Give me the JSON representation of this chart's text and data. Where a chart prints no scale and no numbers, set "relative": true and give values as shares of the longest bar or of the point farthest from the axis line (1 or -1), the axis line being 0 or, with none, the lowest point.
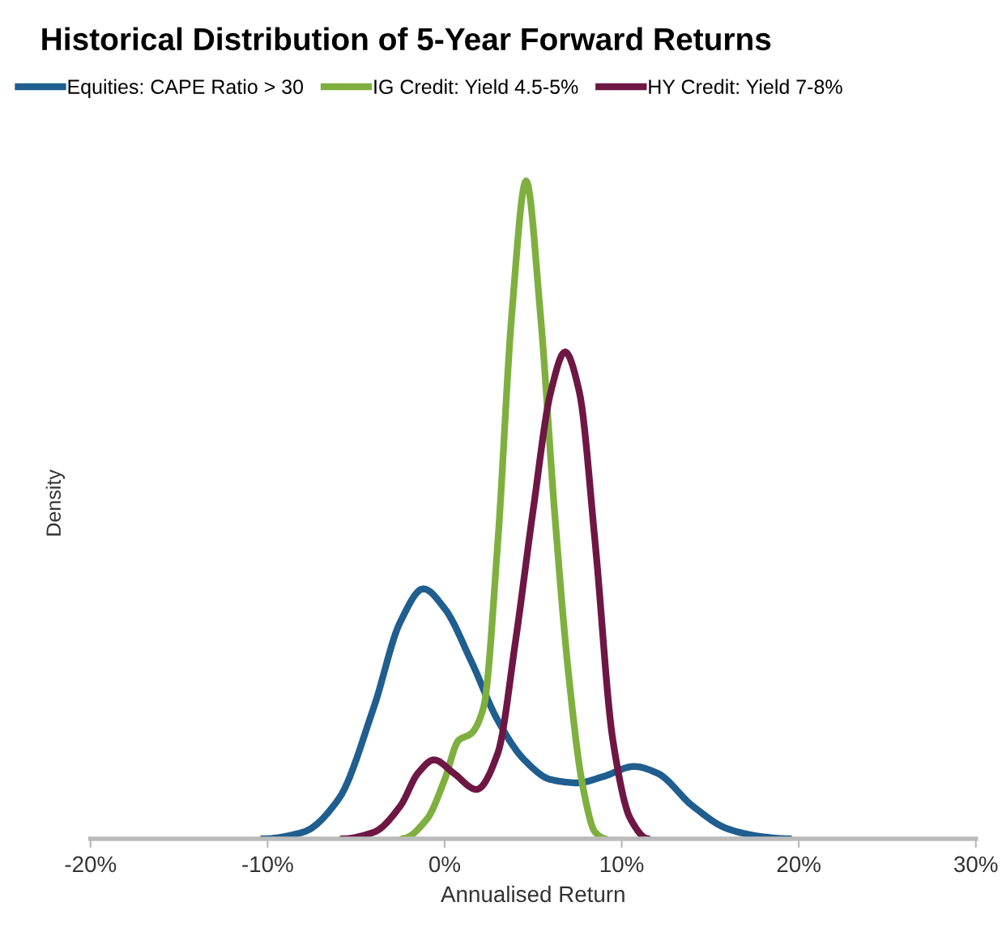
{
  "chart_data": {
    "type": "line",
    "title": "Historical Distribution of 5-Year Forward Returns",
    "xlabel": "Annualised Return",
    "ylabel": "Density",
    "relative": true,
    "legend": "top",
    "grid": false,
    "marker": "none",
    "line_style": "solid",
    "xlim": [
      -20,
      30
    ],
    "xticks": [
      {
        "value": -20,
        "label": "-20%"
      },
      {
        "value": -10,
        "label": "-10%"
      },
      {
        "value": 0,
        "label": "0%"
      },
      {
        "value": 10,
        "label": "10%"
      },
      {
        "value": 20,
        "label": "20%"
      },
      {
        "value": 30,
        "label": "30%"
      }
    ],
    "series": [
      {
        "name": "Equities: CAPE Ratio > 30",
        "color": "#1f5e8e",
        "x": [
          -10.3,
          -8,
          -6,
          -4,
          -2.5,
          -1.2,
          0,
          1.5,
          3,
          4.5,
          6,
          7.5,
          9,
          10.7,
          12,
          14,
          16,
          18,
          19.5
        ],
        "values": [
          0,
          0.01,
          0.06,
          0.2,
          0.33,
          0.38,
          0.35,
          0.27,
          0.18,
          0.12,
          0.09,
          0.085,
          0.095,
          0.11,
          0.1,
          0.05,
          0.015,
          0.003,
          0
        ]
      },
      {
        "name": "IG Credit: Yield 4.5-5%",
        "color": "#7fb03f",
        "x": [
          -2.4,
          -1,
          0,
          0.8,
          1.5,
          2.2,
          3,
          3.8,
          4.6,
          5.4,
          6.2,
          7,
          7.8,
          8.5,
          9.1
        ],
        "values": [
          0,
          0.03,
          0.09,
          0.15,
          0.16,
          0.2,
          0.45,
          0.8,
          1,
          0.8,
          0.5,
          0.25,
          0.08,
          0.01,
          0
        ]
      },
      {
        "name": "HY Credit: Yield 7-8%",
        "color": "#6e1744",
        "x": [
          -5.8,
          -4,
          -2.5,
          -1.5,
          -0.6,
          0.5,
          1.8,
          3,
          4,
          5,
          6,
          6.8,
          7.6,
          8.5,
          9.5,
          10.5,
          11.5
        ],
        "values": [
          0,
          0.01,
          0.05,
          0.1,
          0.12,
          0.1,
          0.075,
          0.13,
          0.3,
          0.5,
          0.68,
          0.74,
          0.68,
          0.45,
          0.15,
          0.03,
          0
        ]
      }
    ]
  }
}
